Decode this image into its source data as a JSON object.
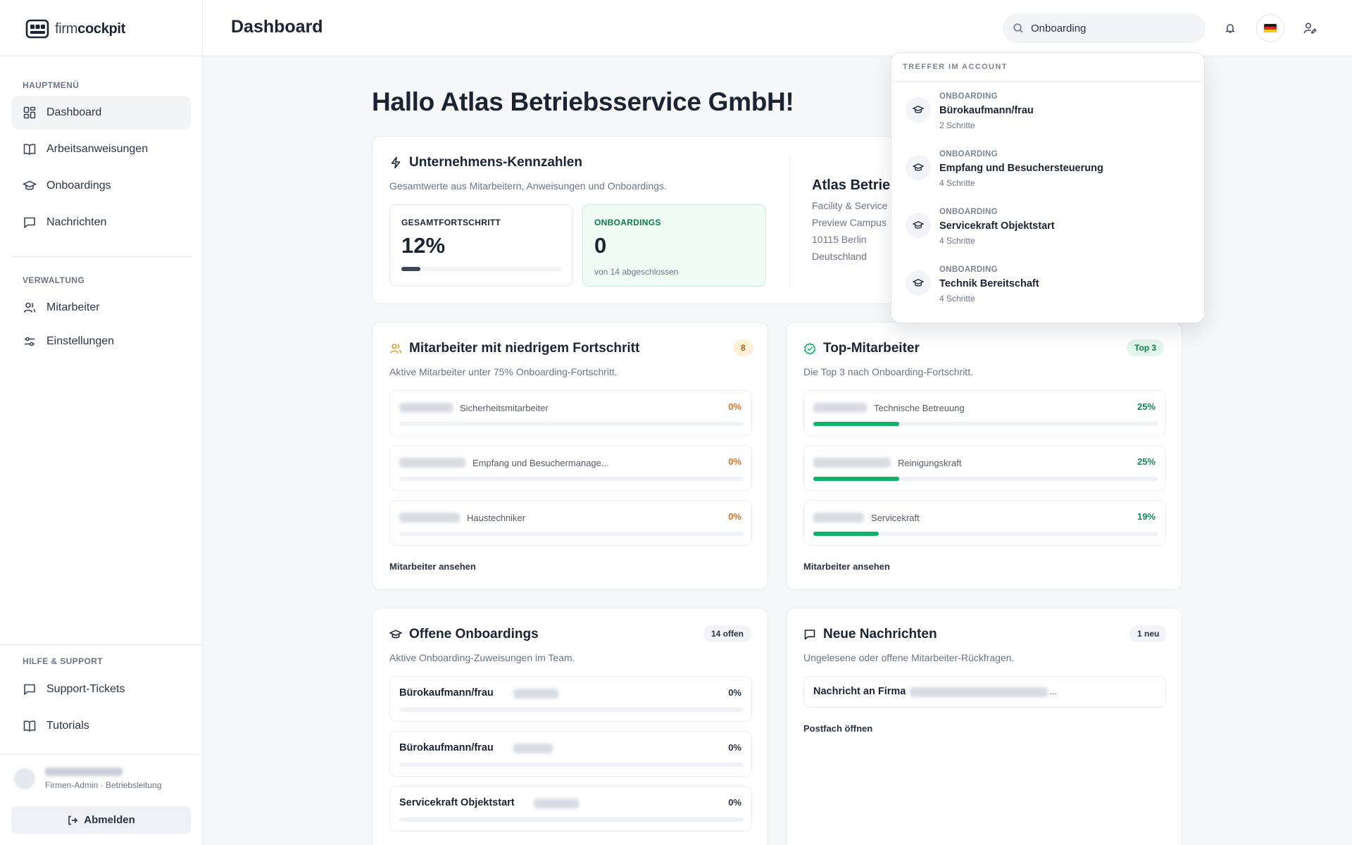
{
  "brand": {
    "logo_light": "firm",
    "logo_bold": "cockpit"
  },
  "sidebar": {
    "main_heading": "HAUPTMENÜ",
    "main_items": [
      {
        "label": "Dashboard",
        "icon": "grid-icon"
      },
      {
        "label": "Arbeitsanweisungen",
        "icon": "book-icon"
      },
      {
        "label": "Onboardings",
        "icon": "graduation-cap-icon"
      },
      {
        "label": "Nachrichten",
        "icon": "message-icon"
      }
    ],
    "admin_heading": "VERWALTUNG",
    "admin_items": [
      {
        "label": "Mitarbeiter",
        "icon": "users-icon"
      },
      {
        "label": "Einstellungen",
        "icon": "sliders-icon"
      }
    ],
    "help_heading": "HILFE & SUPPORT",
    "help_items": [
      {
        "label": "Support-Tickets",
        "icon": "message-icon"
      },
      {
        "label": "Tutorials",
        "icon": "book-icon"
      }
    ],
    "user_role": "Firmen-Admin · Betriebsleitung",
    "logout_label": "Abmelden"
  },
  "header": {
    "title": "Dashboard",
    "search_value": "Onboarding"
  },
  "main": {
    "greeting": "Hallo Atlas Betriebsservice GmbH!",
    "kpi_card": {
      "title": "Unternehmens-Kennzahlen",
      "subtitle": "Gesamtwerte aus Mitarbeitern, Anweisungen und Onboardings.",
      "progress_label": "GESAMTFORTSCHRITT",
      "progress_value": "12%",
      "progress_fraction": 0.12,
      "onboardings_label": "ONBOARDINGS",
      "onboardings_value": "0",
      "onboardings_note": "von 14 abgeschlossen",
      "company_name": "Atlas Betrie",
      "company_lines": [
        "Facility & Service",
        "Preview Campus",
        "10115 Berlin",
        "Deutschland"
      ]
    },
    "low_progress": {
      "title": "Mitarbeiter mit niedrigem Fortschritt",
      "subtitle": "Aktive Mitarbeiter unter 75% Onboarding-Fortschritt.",
      "badge": "8",
      "rows": [
        {
          "role": "Sicherheitsmitarbeiter",
          "pct": "0%"
        },
        {
          "role": "Empfang und Besuchermanage...",
          "pct": "0%"
        },
        {
          "role": "Haustechniker",
          "pct": "0%"
        }
      ],
      "link": "Mitarbeiter ansehen"
    },
    "top_employees": {
      "title": "Top-Mitarbeiter",
      "subtitle": "Die Top 3 nach Onboarding-Fortschritt.",
      "badge": "Top 3",
      "rows": [
        {
          "role": "Technische Betreuung",
          "pct": "25%",
          "fraction": 0.25
        },
        {
          "role": "Reinigungskraft",
          "pct": "25%",
          "fraction": 0.25
        },
        {
          "role": "Servicekraft",
          "pct": "19%",
          "fraction": 0.19
        }
      ],
      "link": "Mitarbeiter ansehen"
    },
    "open_onboardings": {
      "title": "Offene Onboardings",
      "subtitle": "Aktive Onboarding-Zuweisungen im Team.",
      "badge": "14 offen",
      "rows": [
        {
          "title": "Bürokaufmann/frau",
          "pct": "0%"
        },
        {
          "title": "Bürokaufmann/frau",
          "pct": "0%"
        },
        {
          "title": "Servicekraft Objektstart",
          "pct": "0%"
        }
      ]
    },
    "messages": {
      "title": "Neue Nachrichten",
      "subtitle": "Ungelesene oder offene Mitarbeiter-Rückfragen.",
      "badge": "1 neu",
      "row_title": "Nachricht an Firma",
      "row_ellipsis": "...",
      "link": "Postfach öffnen"
    }
  },
  "search_dropdown": {
    "heading": "TREFFER IM ACCOUNT",
    "results": [
      {
        "kind": "ONBOARDING",
        "name": "Bürokaufmann/frau",
        "steps": "2 Schritte"
      },
      {
        "kind": "ONBOARDING",
        "name": "Empfang und Besuchersteuerung",
        "steps": "4 Schritte"
      },
      {
        "kind": "ONBOARDING",
        "name": "Servicekraft Objektstart",
        "steps": "4 Schritte"
      },
      {
        "kind": "ONBOARDING",
        "name": "Technik Bereitschaft",
        "steps": "4 Schritte"
      }
    ]
  },
  "colors": {
    "accent_green": "#10b26a",
    "warning_orange": "#d9731b",
    "dark_text": "#1b2433"
  }
}
